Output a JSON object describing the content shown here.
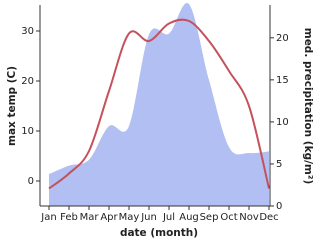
{
  "chart_data": {
    "type": "area_line",
    "x_label": "date (month)",
    "y_label": "max temp (C)",
    "y2_label": "med. precipitation (kg/m²)",
    "categories": [
      "Jan",
      "Feb",
      "Mar",
      "Apr",
      "May",
      "Jun",
      "Jul",
      "Aug",
      "Sep",
      "Oct",
      "Nov",
      "Dec"
    ],
    "series": [
      {
        "name": "max temp",
        "color": "#c4525c",
        "kind": "line",
        "values": [
          -1.5,
          1.5,
          6,
          18,
          29.5,
          28,
          31.5,
          32,
          28,
          22,
          15,
          -1.5
        ]
      },
      {
        "name": "precipitation",
        "color": "#b2bff2",
        "kind": "area",
        "axis": "y2",
        "values": [
          3.8,
          4.8,
          5.5,
          9.5,
          9.5,
          20.4,
          20.5,
          24,
          15,
          7,
          6.3,
          6.5
        ]
      }
    ],
    "ylim": [
      -5,
      35.2
    ],
    "yticks": [
      0,
      10,
      20,
      30
    ],
    "y2lim": [
      0,
      23.9
    ],
    "y2ticks": [
      0,
      5,
      10,
      15,
      20
    ]
  }
}
